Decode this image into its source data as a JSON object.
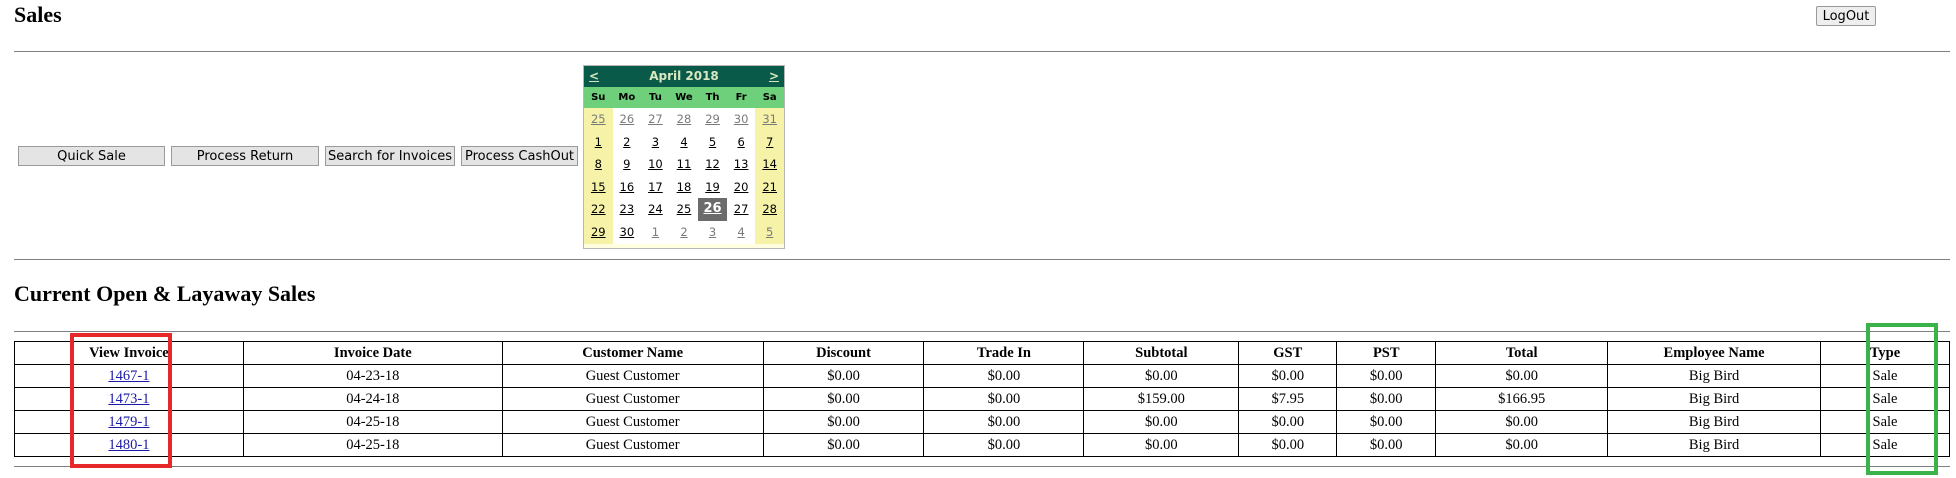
{
  "header": {
    "title": "Sales",
    "logout_label": "LogOut"
  },
  "actions": {
    "quick_sale": "Quick Sale",
    "process_return": "Process Return",
    "search_invoices": "Search for Invoices",
    "process_cashout": "Process CashOut"
  },
  "calendar": {
    "prev": "<",
    "next": ">",
    "month_label": "April 2018",
    "weekdays": [
      "Su",
      "Mo",
      "Tu",
      "We",
      "Th",
      "Fr",
      "Sa"
    ],
    "weeks": [
      [
        "25",
        "26",
        "27",
        "28",
        "29",
        "30",
        "31"
      ],
      [
        "1",
        "2",
        "3",
        "4",
        "5",
        "6",
        "7"
      ],
      [
        "8",
        "9",
        "10",
        "11",
        "12",
        "13",
        "14"
      ],
      [
        "15",
        "16",
        "17",
        "18",
        "19",
        "20",
        "21"
      ],
      [
        "22",
        "23",
        "24",
        "25",
        "26",
        "27",
        "28"
      ],
      [
        "29",
        "30",
        "1",
        "2",
        "3",
        "4",
        "5"
      ]
    ],
    "selected_day": "26"
  },
  "section": {
    "title": "Current Open & Layaway Sales"
  },
  "table": {
    "headers": [
      "View Invoice",
      "Invoice Date",
      "Customer Name",
      "Discount",
      "Trade In",
      "Subtotal",
      "GST",
      "PST",
      "Total",
      "Employee Name",
      "Type"
    ],
    "rows": [
      [
        "1467-1",
        "04-23-18",
        "Guest Customer",
        "$0.00",
        "$0.00",
        "$0.00",
        "$0.00",
        "$0.00",
        "$0.00",
        "Big Bird",
        "Sale"
      ],
      [
        "1473-1",
        "04-24-18",
        "Guest Customer",
        "$0.00",
        "$0.00",
        "$159.00",
        "$7.95",
        "$0.00",
        "$166.95",
        "Big Bird",
        "Sale"
      ],
      [
        "1479-1",
        "04-25-18",
        "Guest Customer",
        "$0.00",
        "$0.00",
        "$0.00",
        "$0.00",
        "$0.00",
        "$0.00",
        "Big Bird",
        "Sale"
      ],
      [
        "1480-1",
        "04-25-18",
        "Guest Customer",
        "$0.00",
        "$0.00",
        "$0.00",
        "$0.00",
        "$0.00",
        "$0.00",
        "Big Bird",
        "Sale"
      ]
    ]
  },
  "colors": {
    "calendar_header": "#0a5a4a",
    "calendar_dow": "#6ed07a",
    "calendar_weekend": "#f6f3a8",
    "highlight_red": "#e6282a",
    "highlight_green": "#3ab34a",
    "link": "#1a1aa6"
  }
}
